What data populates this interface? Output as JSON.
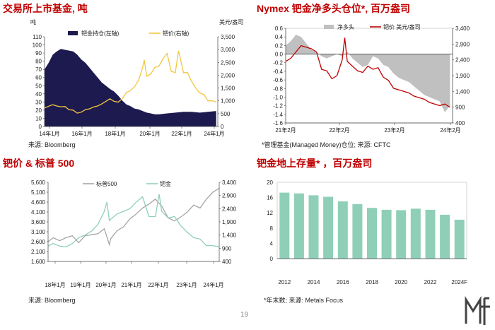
{
  "page_number": "19",
  "logo": {
    "icon": "mf-logo-icon"
  },
  "chart_data": [
    {
      "id": "exchange_fund",
      "type": "area",
      "title": "交易所上市基金, 吨",
      "source": "来源: Bloomberg",
      "left_unit": "吨",
      "right_unit": "美元/盎司",
      "left_ticks": [
        "0",
        "10",
        "20",
        "30",
        "40",
        "50",
        "60",
        "70",
        "80",
        "90",
        "100",
        "110"
      ],
      "right_ticks": [
        "0",
        "500",
        "1,000",
        "1,500",
        "2,000",
        "2,500",
        "3,000",
        "3,500"
      ],
      "x_ticks": [
        "14年1月",
        "16年1月",
        "18年1月",
        "20年1月",
        "22年1月",
        "24年1月"
      ],
      "ylim_left": [
        0,
        110
      ],
      "ylim_right": [
        0,
        3500
      ],
      "xlim": [
        2014.0,
        2024.6
      ],
      "series": [
        {
          "name": "钯金持仓(左轴)",
          "type": "area",
          "axis": "left",
          "color": "#1c1a4f",
          "x": [
            2014.0,
            2014.25,
            2014.5,
            2014.75,
            2015.0,
            2015.25,
            2015.5,
            2015.75,
            2016.0,
            2016.25,
            2016.5,
            2016.75,
            2017.0,
            2017.25,
            2017.5,
            2017.75,
            2018.0,
            2018.25,
            2018.5,
            2018.75,
            2019.0,
            2019.25,
            2019.5,
            2019.75,
            2020.0,
            2020.25,
            2020.5,
            2020.75,
            2021.0,
            2021.5,
            2022.0,
            2022.5,
            2023.0,
            2023.5,
            2024.0,
            2024.5
          ],
          "values": [
            70,
            78,
            88,
            92,
            95,
            94,
            93,
            92,
            88,
            82,
            78,
            72,
            66,
            60,
            54,
            50,
            46,
            43,
            38,
            32,
            27,
            25,
            22,
            21,
            19,
            17,
            16,
            15,
            15,
            16,
            17,
            18,
            18,
            17,
            18,
            19
          ]
        },
        {
          "name": "钯价(右轴)",
          "type": "line",
          "axis": "right",
          "color": "#f3c640",
          "x": [
            2014.0,
            2014.25,
            2014.5,
            2014.75,
            2015.0,
            2015.25,
            2015.5,
            2015.75,
            2016.0,
            2016.25,
            2016.5,
            2016.75,
            2017.0,
            2017.25,
            2017.5,
            2017.75,
            2018.0,
            2018.25,
            2018.5,
            2018.75,
            2019.0,
            2019.25,
            2019.5,
            2019.75,
            2020.0,
            2020.1,
            2020.25,
            2020.5,
            2020.75,
            2021.0,
            2021.25,
            2021.5,
            2021.75,
            2022.0,
            2022.2,
            2022.5,
            2022.75,
            2023.0,
            2023.25,
            2023.5,
            2023.75,
            2024.0,
            2024.3,
            2024.5
          ],
          "values": [
            720,
            790,
            850,
            800,
            770,
            780,
            650,
            640,
            520,
            560,
            660,
            690,
            760,
            800,
            880,
            980,
            1080,
            980,
            950,
            1080,
            1320,
            1400,
            1550,
            1800,
            2300,
            2600,
            1950,
            2050,
            2300,
            2350,
            2650,
            2850,
            2150,
            2100,
            2950,
            2100,
            2100,
            1750,
            1500,
            1300,
            1250,
            1000,
            1000,
            950
          ]
        }
      ]
    },
    {
      "id": "nymex_net",
      "type": "area",
      "title": "Nymex 钯金净多头仓位*, 百万盎司",
      "source": "*管理基金(Managed Money)仓位;  来源: CFTC",
      "right_unit": "",
      "left_ticks": [
        "-1.6",
        "-1.4",
        "-1.2",
        "-1.0",
        "-0.8",
        "-0.6",
        "-0.4",
        "-0.2",
        "0.0",
        "0.2",
        "0.4",
        "0.6"
      ],
      "right_ticks": [
        "400",
        "900",
        "1,400",
        "1,900",
        "2,400",
        "2,900",
        "3,400"
      ],
      "x_ticks": [
        "21年2月",
        "22年2月",
        "23年2月",
        "24年2月"
      ],
      "ylim_left": [
        -1.6,
        0.6
      ],
      "ylim_right": [
        400,
        3400
      ],
      "xlim": [
        2021.0,
        2024.25
      ],
      "series": [
        {
          "name": "净多头",
          "type": "area",
          "axis": "left",
          "color": "#c0c0c0",
          "x": [
            2021.0,
            2021.1,
            2021.2,
            2021.3,
            2021.4,
            2021.5,
            2021.6,
            2021.7,
            2021.8,
            2021.9,
            2022.0,
            2022.1,
            2022.2,
            2022.3,
            2022.4,
            2022.5,
            2022.6,
            2022.7,
            2022.8,
            2022.9,
            2023.0,
            2023.1,
            2023.2,
            2023.3,
            2023.4,
            2023.5,
            2023.6,
            2023.7,
            2023.8,
            2023.9,
            2024.0,
            2024.1,
            2024.2
          ],
          "values": [
            0.2,
            0.3,
            0.45,
            0.4,
            0.25,
            0.1,
            0.05,
            -0.05,
            -0.1,
            -0.05,
            0.0,
            -0.05,
            0.05,
            -0.1,
            -0.2,
            -0.3,
            -0.25,
            -0.05,
            -0.1,
            -0.25,
            -0.3,
            -0.45,
            -0.55,
            -0.6,
            -0.65,
            -0.75,
            -0.85,
            -0.95,
            -1.0,
            -1.05,
            -1.1,
            -1.35,
            -1.2
          ]
        },
        {
          "name": "钯价 美元/盎司",
          "type": "line",
          "axis": "right",
          "color": "#c00000",
          "x": [
            2021.0,
            2021.1,
            2021.2,
            2021.3,
            2021.4,
            2021.5,
            2021.6,
            2021.7,
            2021.8,
            2021.9,
            2022.0,
            2022.1,
            2022.15,
            2022.2,
            2022.3,
            2022.4,
            2022.5,
            2022.6,
            2022.7,
            2022.8,
            2022.9,
            2023.0,
            2023.1,
            2023.2,
            2023.3,
            2023.4,
            2023.5,
            2023.6,
            2023.7,
            2023.8,
            2023.9,
            2024.0,
            2024.1,
            2024.2
          ],
          "values": [
            2350,
            2450,
            2650,
            2850,
            2800,
            2750,
            2650,
            2100,
            2050,
            1800,
            1900,
            2400,
            3100,
            2350,
            2200,
            2050,
            2000,
            2200,
            2100,
            2150,
            1850,
            1750,
            1500,
            1450,
            1400,
            1350,
            1250,
            1200,
            1150,
            1050,
            1000,
            950,
            1000,
            900
          ]
        }
      ]
    },
    {
      "id": "pd_vs_sp500",
      "type": "line",
      "title": "钯价 & 标普 500",
      "source": "来源: Bloomberg",
      "left_ticks": [
        "1,600",
        "2,100",
        "2,600",
        "3,100",
        "3,600",
        "4,100",
        "4,600",
        "5,100",
        "5,600"
      ],
      "right_ticks": [
        "400",
        "900",
        "1,400",
        "1,900",
        "2,400",
        "2,900",
        "3,400"
      ],
      "x_ticks": [
        "18年1月",
        "19年1月",
        "20年1月",
        "21年1月",
        "22年1月",
        "23年1月",
        "24年1月"
      ],
      "ylim_left": [
        1600,
        5600
      ],
      "ylim_right": [
        400,
        3400
      ],
      "xlim": [
        2017.8,
        2024.5
      ],
      "series": [
        {
          "name": "标普500",
          "axis": "left",
          "color": "#a6a6a6",
          "x": [
            2017.8,
            2018.0,
            2018.25,
            2018.5,
            2018.75,
            2019.0,
            2019.25,
            2019.5,
            2019.75,
            2020.0,
            2020.2,
            2020.25,
            2020.5,
            2020.75,
            2021.0,
            2021.25,
            2021.5,
            2021.75,
            2022.0,
            2022.25,
            2022.5,
            2022.75,
            2023.0,
            2023.25,
            2023.5,
            2023.75,
            2024.0,
            2024.25,
            2024.5
          ],
          "values": [
            2600,
            2800,
            2650,
            2800,
            2900,
            2550,
            2900,
            2950,
            3000,
            3250,
            2450,
            2750,
            3150,
            3350,
            3750,
            4000,
            4300,
            4500,
            4750,
            4400,
            3800,
            3650,
            3850,
            4100,
            4450,
            4300,
            4750,
            5100,
            5300
          ]
        },
        {
          "name": "钯金",
          "axis": "right",
          "color": "#8fcfb8",
          "x": [
            2017.8,
            2018.0,
            2018.25,
            2018.5,
            2018.75,
            2019.0,
            2019.25,
            2019.5,
            2019.75,
            2020.0,
            2020.1,
            2020.2,
            2020.25,
            2020.5,
            2020.75,
            2021.0,
            2021.25,
            2021.5,
            2021.75,
            2022.0,
            2022.15,
            2022.25,
            2022.5,
            2022.75,
            2023.0,
            2023.25,
            2023.5,
            2023.75,
            2024.0,
            2024.25,
            2024.5
          ],
          "values": [
            980,
            1080,
            980,
            950,
            1080,
            1300,
            1400,
            1550,
            1800,
            2300,
            2650,
            1950,
            2000,
            2200,
            2300,
            2400,
            2650,
            2850,
            2100,
            2100,
            2950,
            2300,
            2050,
            2100,
            1750,
            1500,
            1300,
            1250,
            1000,
            1000,
            950
          ]
        }
      ]
    },
    {
      "id": "above_ground",
      "type": "bar",
      "title": "钯金地上存量* ，百万盎司",
      "source": "*年末数;  来源: Metals Focus",
      "categories": [
        "2012",
        "2013",
        "2014",
        "2015",
        "2016",
        "2017",
        "2018",
        "2019",
        "2020",
        "2021",
        "2022",
        "2023",
        "2024F"
      ],
      "x_tick_labels": [
        "2012",
        "",
        "2014",
        "",
        "2016",
        "",
        "2018",
        "",
        "2020",
        "",
        "2022",
        "",
        "2024F"
      ],
      "values": [
        17.3,
        17.1,
        16.6,
        16.2,
        15.0,
        14.3,
        13.3,
        12.8,
        12.7,
        13.1,
        12.8,
        11.5,
        10.2
      ],
      "y_ticks": [
        "0",
        "4",
        "8",
        "12",
        "16",
        "20"
      ],
      "ylim": [
        0,
        20
      ],
      "color": "#8fcfb8"
    }
  ]
}
